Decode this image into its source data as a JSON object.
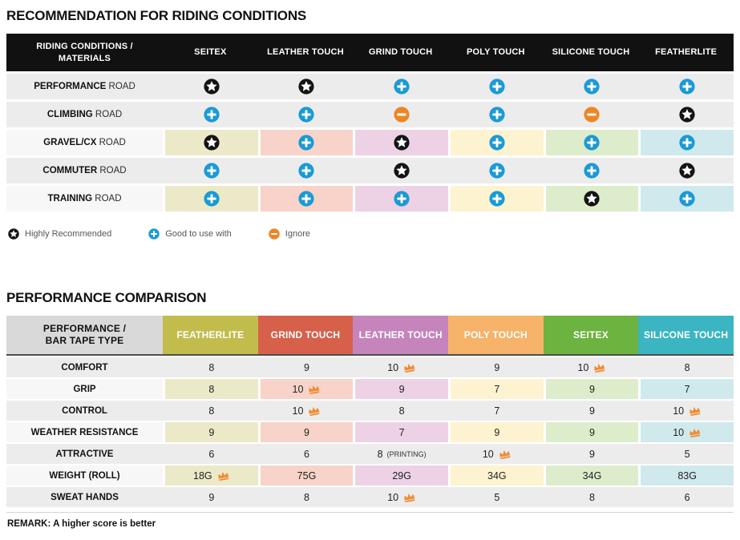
{
  "recommendation_table": {
    "title": "RECOMMENDATION FOR RIDING CONDITIONS",
    "corner_header_line1": "RIDING CONDITIONS /",
    "corner_header_line2": "MATERIALS",
    "columns": [
      "SEITEX",
      "LEATHER TOUCH",
      "GRIND TOUCH",
      "POLY TOUCH",
      "SILICONE TOUCH",
      "FEATHERLITE"
    ],
    "column_tints": [
      "#ebe9c8",
      "#f7d3c9",
      "#edd2e6",
      "#fdf3d1",
      "#ddedcb",
      "#cfe9ed"
    ],
    "rows": [
      {
        "label_bold": "PERFORMANCE",
        "label_rest": "ROAD",
        "tinted": false,
        "cells": [
          "star",
          "star",
          "plus",
          "plus",
          "plus",
          "plus"
        ]
      },
      {
        "label_bold": "CLIMBING",
        "label_rest": "ROAD",
        "tinted": false,
        "cells": [
          "plus",
          "plus",
          "minus",
          "plus",
          "minus",
          "star"
        ]
      },
      {
        "label_bold": "GRAVEL/CX",
        "label_rest": "ROAD",
        "tinted": true,
        "cells": [
          "star",
          "plus",
          "star",
          "plus",
          "plus",
          "plus"
        ]
      },
      {
        "label_bold": "COMMUTER",
        "label_rest": "ROAD",
        "tinted": false,
        "cells": [
          "plus",
          "plus",
          "star",
          "plus",
          "plus",
          "star"
        ]
      },
      {
        "label_bold": "TRAINING",
        "label_rest": "ROAD",
        "tinted": true,
        "cells": [
          "plus",
          "plus",
          "plus",
          "plus",
          "star",
          "plus"
        ]
      }
    ]
  },
  "legend": {
    "items": [
      {
        "icon": "star",
        "label": "Highly Recommended"
      },
      {
        "icon": "plus",
        "label": "Good to use with"
      },
      {
        "icon": "minus",
        "label": "Ignore"
      }
    ]
  },
  "performance_table": {
    "title": "PERFORMANCE COMPARISON",
    "corner_header_line1": "PERFORMANCE /",
    "corner_header_line2": "BAR TAPE TYPE",
    "corner_bg": "#d9d9d9",
    "columns": [
      {
        "label": "FEATHERLITE",
        "color": "#c2bc4d",
        "tint": "#ebe9c8"
      },
      {
        "label": "GRIND TOUCH",
        "color": "#d6604a",
        "tint": "#f7d3c9"
      },
      {
        "label": "LEATHER TOUCH",
        "color": "#c584bc",
        "tint": "#edd2e6"
      },
      {
        "label": "POLY TOUCH",
        "color": "#f6b369",
        "tint": "#fdf3d1"
      },
      {
        "label": "SEITEX",
        "color": "#6cb33f",
        "tint": "#ddedcb"
      },
      {
        "label": "SILICONE TOUCH",
        "color": "#3ab5c1",
        "tint": "#cfe9ed"
      }
    ],
    "rows": [
      {
        "label": "COMFORT",
        "tinted": false,
        "cells": [
          {
            "v": "8"
          },
          {
            "v": "9"
          },
          {
            "v": "10",
            "crown": true
          },
          {
            "v": "9"
          },
          {
            "v": "10",
            "crown": true
          },
          {
            "v": "8"
          }
        ]
      },
      {
        "label": "GRIP",
        "tinted": true,
        "cells": [
          {
            "v": "8"
          },
          {
            "v": "10",
            "crown": true
          },
          {
            "v": "9"
          },
          {
            "v": "7"
          },
          {
            "v": "9"
          },
          {
            "v": "7"
          }
        ]
      },
      {
        "label": "CONTROL",
        "tinted": false,
        "cells": [
          {
            "v": "8"
          },
          {
            "v": "10",
            "crown": true
          },
          {
            "v": "8"
          },
          {
            "v": "7"
          },
          {
            "v": "9"
          },
          {
            "v": "10",
            "crown": true
          }
        ]
      },
      {
        "label": "WEATHER RESISTANCE",
        "tinted": true,
        "cells": [
          {
            "v": "9"
          },
          {
            "v": "9"
          },
          {
            "v": "7"
          },
          {
            "v": "9"
          },
          {
            "v": "9"
          },
          {
            "v": "10",
            "crown": true
          }
        ]
      },
      {
        "label": "ATTRACTIVE",
        "tinted": false,
        "cells": [
          {
            "v": "6"
          },
          {
            "v": "6"
          },
          {
            "v": "8",
            "suffix": "(PRINTING)"
          },
          {
            "v": "10",
            "crown": true
          },
          {
            "v": "9"
          },
          {
            "v": "5"
          }
        ]
      },
      {
        "label": "WEIGHT (ROLL)",
        "tinted": true,
        "cells": [
          {
            "v": "18G",
            "crown": true
          },
          {
            "v": "75G"
          },
          {
            "v": "29G"
          },
          {
            "v": "34G"
          },
          {
            "v": "34G"
          },
          {
            "v": "83G"
          }
        ]
      },
      {
        "label": "SWEAT HANDS",
        "tinted": false,
        "cells": [
          {
            "v": "9"
          },
          {
            "v": "8"
          },
          {
            "v": "10",
            "crown": true
          },
          {
            "v": "5"
          },
          {
            "v": "8"
          },
          {
            "v": "6"
          }
        ]
      }
    ],
    "remark": "REMARK: A higher score is better"
  },
  "colors": {
    "star_icon_bg": "#141414",
    "plus_icon_bg": "#1b9ad6",
    "minus_icon_bg": "#ee8524",
    "crown_icon": "#f08b33",
    "header_black": "#111111",
    "row_gray": "#ececec"
  }
}
